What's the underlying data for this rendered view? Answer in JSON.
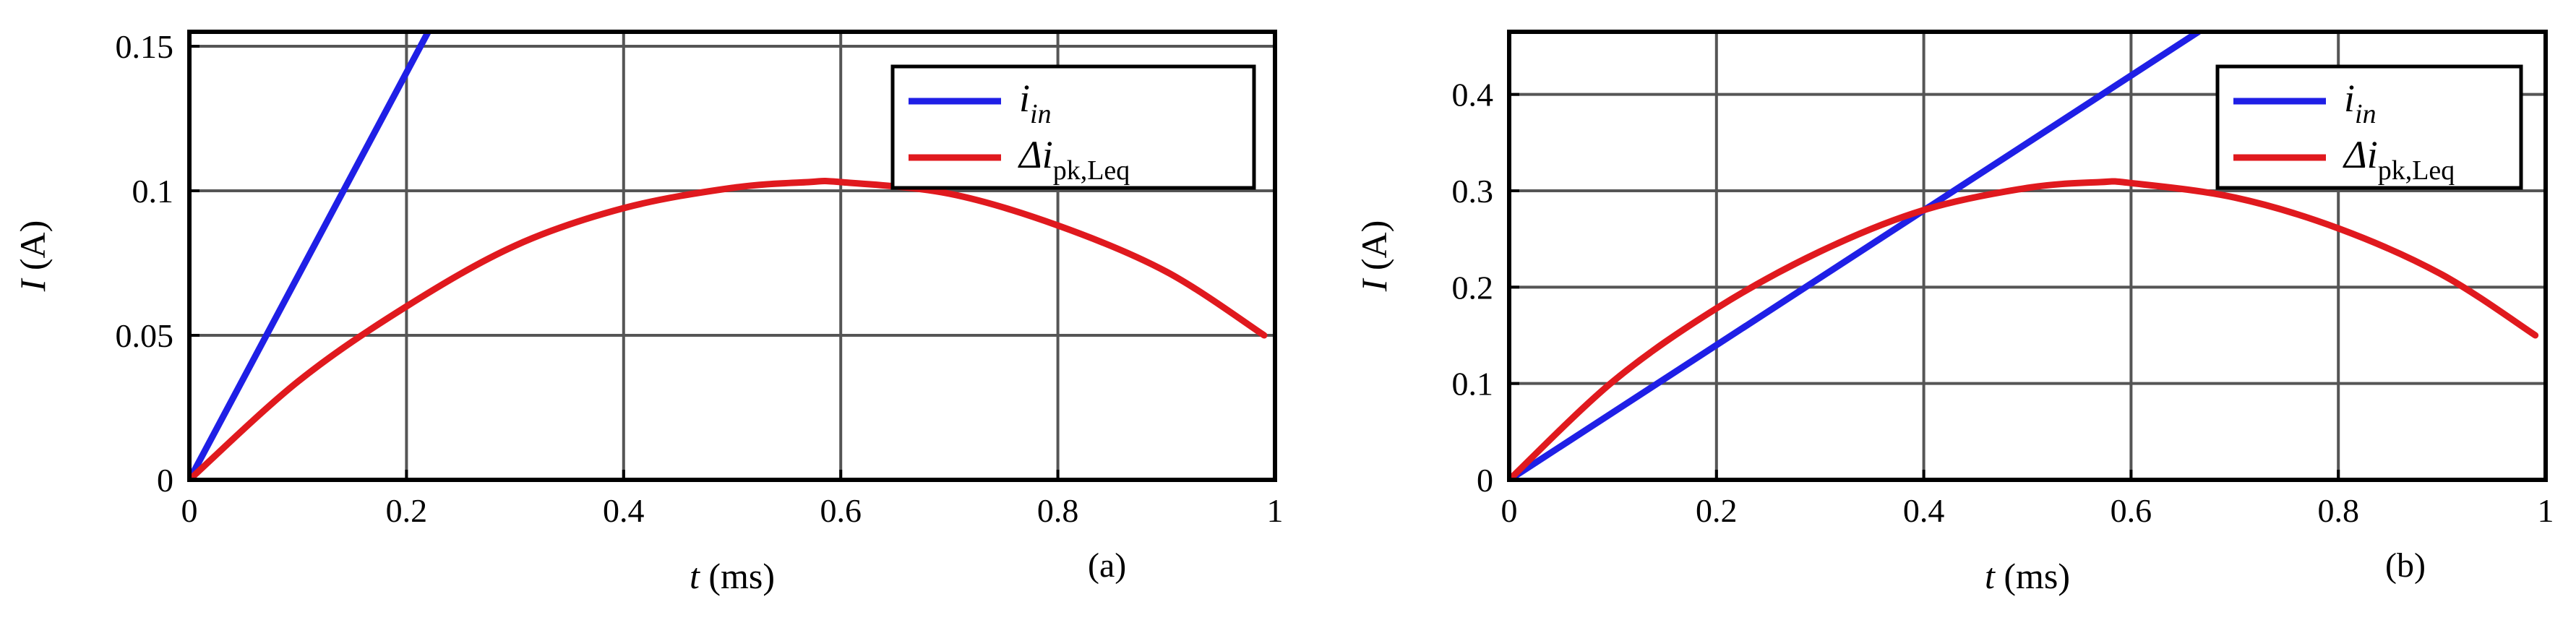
{
  "chart_data": [
    {
      "type": "line",
      "panel_label": "(a)",
      "xlabel": "t (ms)",
      "ylabel": "I (A)",
      "xlim": [
        0,
        1
      ],
      "ylim": [
        0,
        0.155
      ],
      "x_ticks": [
        "0",
        "0.2",
        "0.4",
        "0.6",
        "0.8",
        "1"
      ],
      "x_tick_values": [
        0,
        0.2,
        0.4,
        0.6,
        0.8,
        1
      ],
      "y_ticks": [
        "0",
        "0.05",
        "0.1",
        "0.15"
      ],
      "y_tick_values": [
        0,
        0.05,
        0.1,
        0.15
      ],
      "grid": true,
      "legend_position": "top-right",
      "series": [
        {
          "name": "iin",
          "name_main": "i",
          "name_sub": "in",
          "color": "#1f1fe6",
          "x": [
            0,
            0.22
          ],
          "y": [
            0,
            0.155
          ]
        },
        {
          "name": "Δipk,Leq",
          "name_main": "Δi",
          "name_sub": "pk,Leq",
          "color": "#e0191e",
          "x": [
            0,
            0.1,
            0.2,
            0.3,
            0.4,
            0.5,
            0.57,
            0.6,
            0.7,
            0.8,
            0.9,
            0.99
          ],
          "y": [
            0,
            0.034,
            0.06,
            0.081,
            0.094,
            0.101,
            0.103,
            0.103,
            0.099,
            0.088,
            0.072,
            0.05
          ]
        }
      ]
    },
    {
      "type": "line",
      "panel_label": "(b)",
      "xlabel": "t (ms)",
      "ylabel": "I (A)",
      "xlim": [
        0,
        1
      ],
      "ylim": [
        0,
        0.465
      ],
      "x_ticks": [
        "0",
        "0.2",
        "0.4",
        "0.6",
        "0.8",
        "1"
      ],
      "x_tick_values": [
        0,
        0.2,
        0.4,
        0.6,
        0.8,
        1
      ],
      "y_ticks": [
        "0",
        "0.1",
        "0.2",
        "0.3",
        "0.4"
      ],
      "y_tick_values": [
        0,
        0.1,
        0.2,
        0.3,
        0.4
      ],
      "grid": true,
      "legend_position": "top-right",
      "series": [
        {
          "name": "iin",
          "name_main": "i",
          "name_sub": "in",
          "color": "#1f1fe6",
          "x": [
            0,
            0.665
          ],
          "y": [
            0,
            0.465
          ]
        },
        {
          "name": "Δipk,Leq",
          "name_main": "Δi",
          "name_sub": "pk,Leq",
          "color": "#e0191e",
          "x": [
            0,
            0.1,
            0.2,
            0.3,
            0.4,
            0.5,
            0.57,
            0.6,
            0.7,
            0.8,
            0.9,
            0.99
          ],
          "y": [
            0,
            0.102,
            0.178,
            0.237,
            0.28,
            0.303,
            0.309,
            0.308,
            0.293,
            0.261,
            0.213,
            0.15
          ]
        }
      ]
    }
  ]
}
